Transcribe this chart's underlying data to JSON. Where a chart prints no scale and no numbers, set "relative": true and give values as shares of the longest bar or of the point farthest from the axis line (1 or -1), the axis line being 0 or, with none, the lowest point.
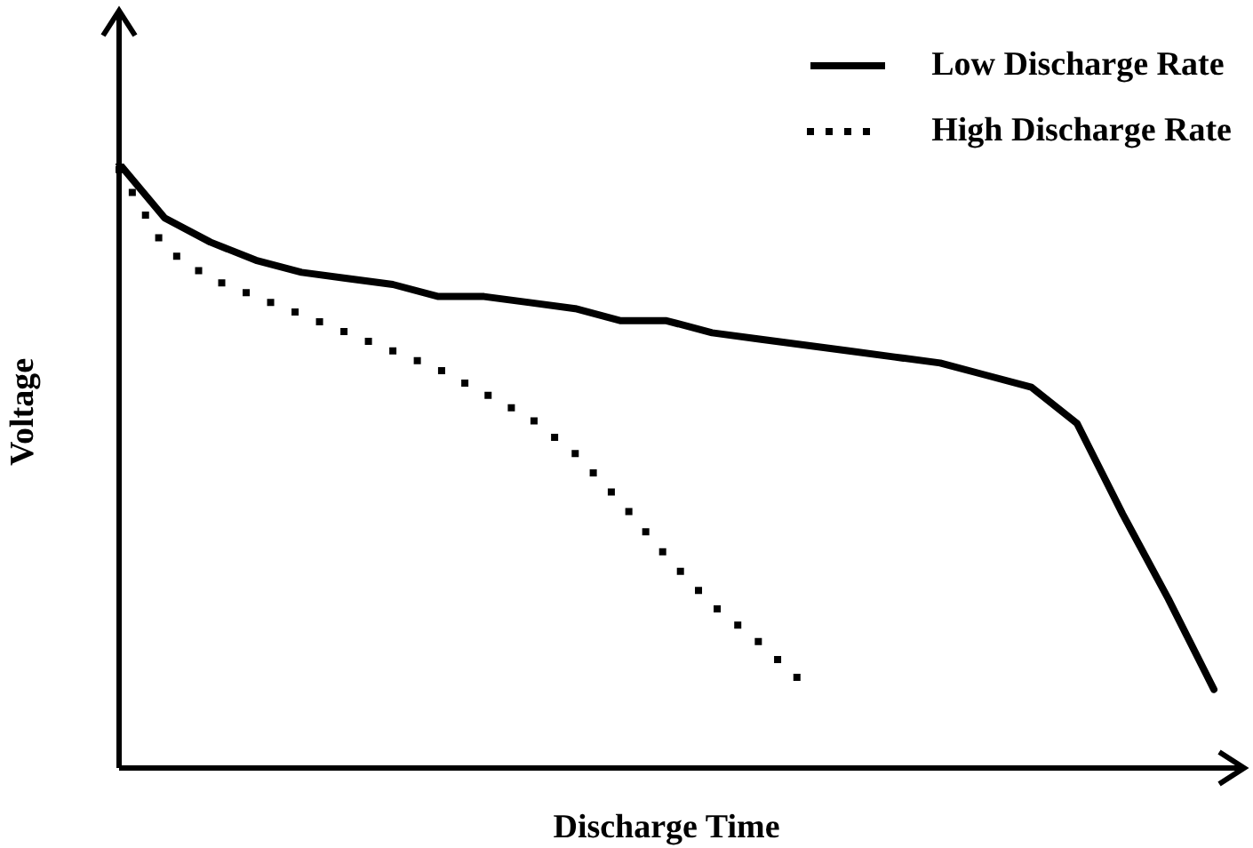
{
  "chart_data": {
    "type": "line",
    "relative": true,
    "xlabel": "Discharge Time",
    "ylabel": "Voltage",
    "legend": "top right",
    "grid": false,
    "marker": "none",
    "categories": [
      null,
      null,
      null,
      null,
      null,
      null,
      null,
      null,
      null,
      null,
      null,
      null,
      null,
      null,
      null,
      null,
      null,
      null,
      null,
      null,
      null,
      null,
      null,
      null,
      null
    ],
    "series": [
      {
        "name": "Low Discharge Rate",
        "color": "#000000",
        "line_style": "solid",
        "values": [
          1.0,
          0.91,
          0.87,
          0.84,
          0.82,
          0.81,
          0.8,
          0.78,
          0.78,
          0.77,
          0.76,
          0.74,
          0.74,
          0.72,
          0.71,
          0.7,
          0.69,
          0.68,
          0.67,
          0.65,
          0.63,
          0.57,
          0.42,
          0.28,
          0.13
        ]
      },
      {
        "name": "High Discharge Rate",
        "color": "#000000",
        "line_style": "dotted",
        "values": [
          0.99,
          0.86,
          0.81,
          0.78,
          0.75,
          0.72,
          0.69,
          0.66,
          0.62,
          0.58,
          0.52,
          0.44,
          0.35,
          0.27,
          0.21,
          0.14,
          null,
          null,
          null,
          null,
          null,
          null,
          null,
          null,
          null
        ]
      }
    ]
  }
}
